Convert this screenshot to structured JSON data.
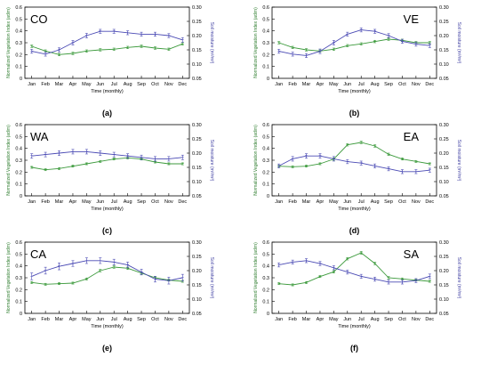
{
  "figure": {
    "colors": {
      "ndvi": "#3c9a3c",
      "soil": "#4a4ab4",
      "axis": "#000000",
      "ndvi_axis": "#2e7d2e",
      "soil_axis": "#3b3ba0"
    }
  },
  "chart_data": [
    {
      "type": "line",
      "region": "CO",
      "caption": "(a)",
      "categories": [
        "Jan",
        "Feb",
        "Mar",
        "Apr",
        "May",
        "Jun",
        "Jul",
        "Aug",
        "Sep",
        "Oct",
        "Nov",
        "Dec"
      ],
      "xlabel": "Time (monthly)",
      "ylabel_left": "Normalized Vegetation Index (adim)",
      "ylabel_right": "Soil moisture (m³/m³)",
      "ylim_left": [
        0.0,
        0.6
      ],
      "ylim_right": [
        0.05,
        0.3
      ],
      "left_ticks": [
        "0",
        "0.1",
        "0.2",
        "0.3",
        "0.4",
        "0.5",
        "0.6"
      ],
      "right_ticks": [
        "0.05",
        "0.10",
        "0.15",
        "0.20",
        "0.25",
        "0.30"
      ],
      "series": [
        {
          "axis": "left",
          "color": "ndvi",
          "values": [
            0.27,
            0.23,
            0.2,
            0.21,
            0.23,
            0.24,
            0.245,
            0.26,
            0.27,
            0.255,
            0.245,
            0.29
          ],
          "error": [
            0.01,
            0.01,
            0.01,
            0.01,
            0.01,
            0.01,
            0.01,
            0.01,
            0.01,
            0.01,
            0.01,
            0.01
          ]
        },
        {
          "axis": "right",
          "color": "soil",
          "values": [
            0.145,
            0.135,
            0.15,
            0.175,
            0.2,
            0.215,
            0.215,
            0.21,
            0.205,
            0.205,
            0.2,
            0.185
          ],
          "error": [
            0.007,
            0.007,
            0.007,
            0.008,
            0.008,
            0.007,
            0.007,
            0.007,
            0.007,
            0.007,
            0.007,
            0.008
          ]
        }
      ]
    },
    {
      "type": "line",
      "region": "VE",
      "caption": "(b)",
      "categories": [
        "Jan",
        "Feb",
        "Mar",
        "Apr",
        "May",
        "Jun",
        "Jul",
        "Aug",
        "Sep",
        "Oct",
        "Nov",
        "Dec"
      ],
      "xlabel": "Time (monthly)",
      "ylabel_left": "Normalized Vegetation Index (adim)",
      "ylabel_right": "Soil moisture (m³/m³)",
      "ylim_left": [
        0.0,
        0.6
      ],
      "ylim_right": [
        0.05,
        0.3
      ],
      "left_ticks": [
        "0",
        "0.1",
        "0.2",
        "0.3",
        "0.4",
        "0.5",
        "0.6"
      ],
      "right_ticks": [
        "0.05",
        "0.10",
        "0.15",
        "0.20",
        "0.25",
        "0.30"
      ],
      "series": [
        {
          "axis": "left",
          "color": "ndvi",
          "values": [
            0.3,
            0.26,
            0.24,
            0.23,
            0.245,
            0.275,
            0.29,
            0.31,
            0.33,
            0.32,
            0.3,
            0.3
          ],
          "error": [
            0.01,
            0.01,
            0.01,
            0.01,
            0.01,
            0.01,
            0.01,
            0.01,
            0.01,
            0.01,
            0.01,
            0.01
          ]
        },
        {
          "axis": "right",
          "color": "soil",
          "values": [
            0.145,
            0.135,
            0.13,
            0.145,
            0.175,
            0.205,
            0.22,
            0.215,
            0.2,
            0.18,
            0.17,
            0.165
          ],
          "error": [
            0.007,
            0.007,
            0.007,
            0.008,
            0.008,
            0.007,
            0.007,
            0.007,
            0.007,
            0.007,
            0.007,
            0.007
          ]
        }
      ]
    },
    {
      "type": "line",
      "region": "WA",
      "caption": "(c)",
      "categories": [
        "Jan",
        "Feb",
        "Mar",
        "Apr",
        "May",
        "Jun",
        "Jul",
        "Aug",
        "Sep",
        "Oct",
        "Nov",
        "Dec"
      ],
      "xlabel": "Time (monthly)",
      "ylabel_left": "Normalized Vegetation Index (adim)",
      "ylabel_right": "Soil moisture (m³/m³)",
      "ylim_left": [
        0.0,
        0.6
      ],
      "ylim_right": [
        0.05,
        0.3
      ],
      "left_ticks": [
        "0",
        "0.1",
        "0.2",
        "0.3",
        "0.4",
        "0.5",
        "0.6"
      ],
      "right_ticks": [
        "0.05",
        "0.10",
        "0.15",
        "0.20",
        "0.25",
        "0.30"
      ],
      "series": [
        {
          "axis": "left",
          "color": "ndvi",
          "values": [
            0.24,
            0.22,
            0.23,
            0.25,
            0.27,
            0.29,
            0.31,
            0.32,
            0.31,
            0.285,
            0.27,
            0.27
          ],
          "error": [
            0.008,
            0.008,
            0.008,
            0.008,
            0.008,
            0.008,
            0.008,
            0.008,
            0.008,
            0.008,
            0.008,
            0.008
          ]
        },
        {
          "axis": "right",
          "color": "soil",
          "values": [
            0.19,
            0.195,
            0.2,
            0.205,
            0.205,
            0.2,
            0.195,
            0.19,
            0.185,
            0.18,
            0.18,
            0.185
          ],
          "error": [
            0.008,
            0.008,
            0.008,
            0.008,
            0.008,
            0.008,
            0.008,
            0.008,
            0.008,
            0.008,
            0.008,
            0.008
          ]
        }
      ]
    },
    {
      "type": "line",
      "region": "EA",
      "caption": "(d)",
      "categories": [
        "Jan",
        "Feb",
        "Mar",
        "Apr",
        "May",
        "Jun",
        "Jul",
        "Aug",
        "Sep",
        "Oct",
        "Nov",
        "Dec"
      ],
      "xlabel": "Time (monthly)",
      "ylabel_left": "Normalized Vegetation Index (adim)",
      "ylabel_right": "Soil moisture (m³/m³)",
      "ylim_left": [
        0.0,
        0.6
      ],
      "ylim_right": [
        0.05,
        0.3
      ],
      "left_ticks": [
        "0",
        "0.1",
        "0.2",
        "0.3",
        "0.4",
        "0.5",
        "0.6"
      ],
      "right_ticks": [
        "0.05",
        "0.10",
        "0.15",
        "0.20",
        "0.25",
        "0.30"
      ],
      "series": [
        {
          "axis": "left",
          "color": "ndvi",
          "values": [
            0.25,
            0.245,
            0.25,
            0.27,
            0.31,
            0.43,
            0.45,
            0.42,
            0.35,
            0.31,
            0.29,
            0.27
          ],
          "error": [
            0.008,
            0.008,
            0.008,
            0.008,
            0.01,
            0.01,
            0.01,
            0.01,
            0.01,
            0.008,
            0.008,
            0.008
          ]
        },
        {
          "axis": "right",
          "color": "soil",
          "values": [
            0.155,
            0.18,
            0.19,
            0.19,
            0.18,
            0.17,
            0.165,
            0.155,
            0.145,
            0.135,
            0.135,
            0.14
          ],
          "error": [
            0.007,
            0.008,
            0.008,
            0.008,
            0.008,
            0.007,
            0.007,
            0.007,
            0.007,
            0.007,
            0.007,
            0.007
          ]
        }
      ]
    },
    {
      "type": "line",
      "region": "CA",
      "caption": "(e)",
      "categories": [
        "Jan",
        "Feb",
        "Mar",
        "Apr",
        "May",
        "Jun",
        "Jul",
        "Aug",
        "Sep",
        "Oct",
        "Nov",
        "Dec"
      ],
      "xlabel": "Time (monthly)",
      "ylabel_left": "Normalized Vegetation Index (adim)",
      "ylabel_right": "Soil moisture (m³/m³)",
      "ylim_left": [
        0.0,
        0.6
      ],
      "ylim_right": [
        0.05,
        0.3
      ],
      "left_ticks": [
        "0",
        "0.1",
        "0.2",
        "0.3",
        "0.4",
        "0.5",
        "0.6"
      ],
      "right_ticks": [
        "0.05",
        "0.10",
        "0.15",
        "0.20",
        "0.25",
        "0.30"
      ],
      "series": [
        {
          "axis": "left",
          "color": "ndvi",
          "values": [
            0.26,
            0.245,
            0.25,
            0.255,
            0.29,
            0.36,
            0.39,
            0.38,
            0.34,
            0.3,
            0.28,
            0.27
          ],
          "error": [
            0.008,
            0.008,
            0.008,
            0.008,
            0.008,
            0.01,
            0.01,
            0.01,
            0.01,
            0.008,
            0.008,
            0.008
          ]
        },
        {
          "axis": "right",
          "color": "soil",
          "values": [
            0.18,
            0.2,
            0.215,
            0.225,
            0.235,
            0.235,
            0.23,
            0.22,
            0.195,
            0.17,
            0.165,
            0.175
          ],
          "error": [
            0.012,
            0.012,
            0.012,
            0.01,
            0.01,
            0.01,
            0.01,
            0.01,
            0.01,
            0.01,
            0.012,
            0.012
          ]
        }
      ]
    },
    {
      "type": "line",
      "region": "SA",
      "caption": "(f)",
      "categories": [
        "Jan",
        "Feb",
        "Mar",
        "Apr",
        "May",
        "Jun",
        "Jul",
        "Aug",
        "Sep",
        "Oct",
        "Nov",
        "Dec"
      ],
      "xlabel": "Time (monthly)",
      "ylabel_left": "Normalized Vegetation Index (adim)",
      "ylabel_right": "Soil moisture (m³/m³)",
      "ylim_left": [
        0.0,
        0.6
      ],
      "ylim_right": [
        0.05,
        0.3
      ],
      "left_ticks": [
        "0",
        "0.1",
        "0.2",
        "0.3",
        "0.4",
        "0.5",
        "0.6"
      ],
      "right_ticks": [
        "0.05",
        "0.10",
        "0.15",
        "0.20",
        "0.25",
        "0.30"
      ],
      "series": [
        {
          "axis": "left",
          "color": "ndvi",
          "values": [
            0.25,
            0.24,
            0.26,
            0.31,
            0.35,
            0.46,
            0.51,
            0.42,
            0.3,
            0.29,
            0.28,
            0.27
          ],
          "error": [
            0.008,
            0.008,
            0.008,
            0.008,
            0.01,
            0.01,
            0.012,
            0.01,
            0.01,
            0.008,
            0.008,
            0.008
          ]
        },
        {
          "axis": "right",
          "color": "soil",
          "values": [
            0.22,
            0.23,
            0.235,
            0.225,
            0.21,
            0.195,
            0.18,
            0.17,
            0.16,
            0.16,
            0.165,
            0.18
          ],
          "error": [
            0.007,
            0.007,
            0.007,
            0.007,
            0.007,
            0.007,
            0.007,
            0.007,
            0.007,
            0.007,
            0.007,
            0.008
          ]
        }
      ]
    }
  ]
}
